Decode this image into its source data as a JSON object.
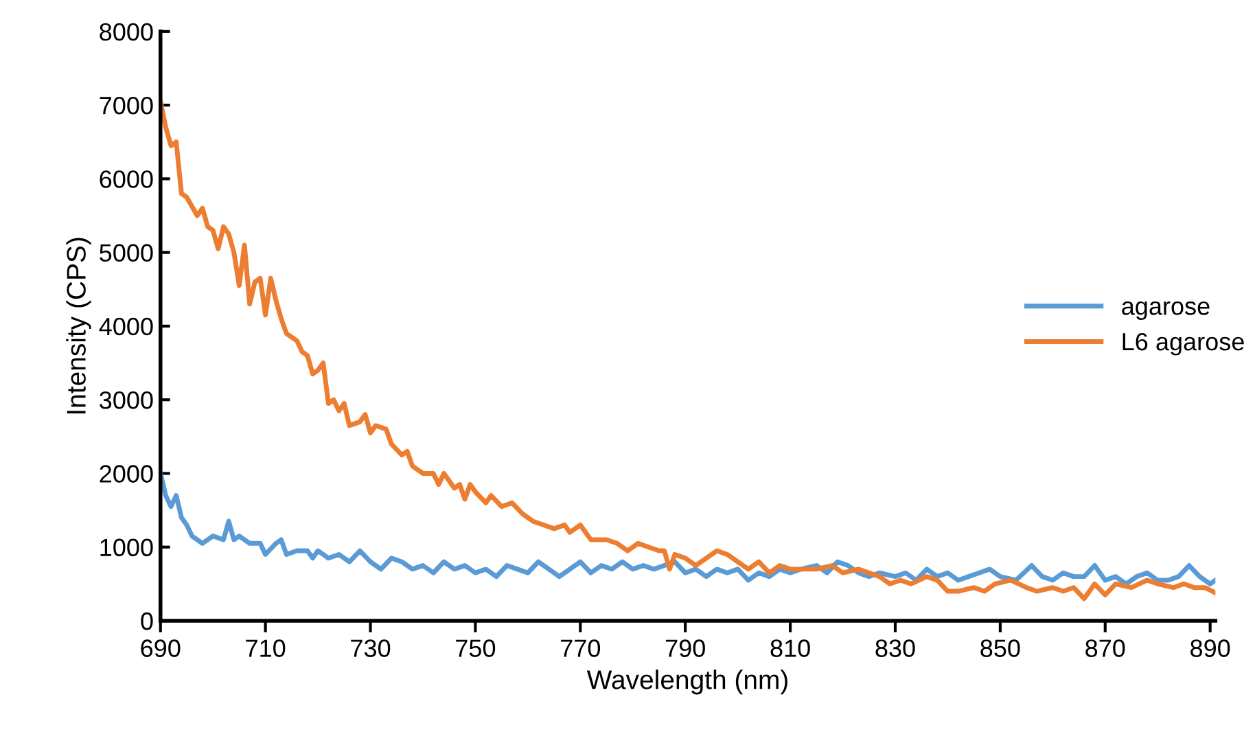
{
  "chart_data": {
    "type": "line",
    "xlabel": "Wavelength (nm)",
    "ylabel": "Intensity (CPS)",
    "xlim": [
      690,
      891
    ],
    "xticks": [
      690,
      710,
      730,
      750,
      770,
      790,
      810,
      830,
      850,
      870,
      890
    ],
    "ylim": [
      0,
      8000
    ],
    "yticks": [
      0,
      1000,
      2000,
      3000,
      4000,
      5000,
      6000,
      7000,
      8000
    ],
    "grid": false,
    "legend": "right",
    "marker": "none",
    "line_style": "solid",
    "series": [
      {
        "name": "agarose",
        "color": "#5b9bd5",
        "x": [
          690,
          691,
          692,
          693,
          694,
          695,
          696,
          698,
          700,
          702,
          703,
          704,
          705,
          707,
          709,
          710,
          712,
          713,
          714,
          716,
          718,
          719,
          720,
          721,
          722,
          724,
          726,
          728,
          730,
          732,
          734,
          736,
          738,
          740,
          742,
          744,
          746,
          748,
          750,
          752,
          754,
          756,
          758,
          760,
          762,
          764,
          766,
          768,
          770,
          772,
          774,
          776,
          778,
          780,
          782,
          784,
          786,
          788,
          790,
          792,
          794,
          796,
          798,
          800,
          802,
          804,
          806,
          808,
          810,
          812,
          815,
          817,
          819,
          821,
          823,
          825,
          827,
          830,
          832,
          834,
          836,
          838,
          840,
          842,
          844,
          846,
          848,
          850,
          853,
          856,
          858,
          860,
          862,
          864,
          866,
          868,
          870,
          872,
          874,
          876,
          878,
          880,
          882,
          884,
          886,
          888,
          890,
          891
        ],
        "values": [
          2000,
          1700,
          1550,
          1700,
          1400,
          1300,
          1150,
          1050,
          1150,
          1100,
          1350,
          1100,
          1150,
          1050,
          1050,
          900,
          1050,
          1100,
          900,
          950,
          950,
          850,
          950,
          900,
          850,
          900,
          800,
          950,
          800,
          700,
          850,
          800,
          700,
          750,
          650,
          800,
          700,
          750,
          650,
          700,
          600,
          750,
          700,
          650,
          800,
          700,
          600,
          700,
          800,
          650,
          750,
          700,
          800,
          700,
          750,
          700,
          750,
          800,
          650,
          700,
          600,
          700,
          650,
          700,
          550,
          650,
          600,
          700,
          650,
          700,
          750,
          650,
          800,
          750,
          650,
          600,
          650,
          600,
          650,
          550,
          700,
          600,
          650,
          550,
          600,
          650,
          700,
          600,
          550,
          750,
          600,
          550,
          650,
          600,
          600,
          750,
          550,
          600,
          500,
          600,
          650,
          550,
          550,
          600,
          750,
          600,
          500,
          550
        ]
      },
      {
        "name": "L6 agarose",
        "color": "#ed7d31",
        "x": [
          690,
          691,
          692,
          693,
          694,
          695,
          697,
          698,
          699,
          700,
          701,
          702,
          703,
          704,
          705,
          706,
          707,
          708,
          709,
          710,
          711,
          712,
          713,
          714,
          716,
          717,
          718,
          719,
          720,
          721,
          722,
          723,
          724,
          725,
          726,
          728,
          729,
          730,
          731,
          733,
          734,
          736,
          737,
          738,
          740,
          742,
          743,
          744,
          746,
          747,
          748,
          749,
          750,
          752,
          753,
          755,
          757,
          759,
          761,
          763,
          765,
          767,
          768,
          770,
          772,
          775,
          777,
          779,
          781,
          783,
          785,
          786,
          787,
          788,
          790,
          792,
          794,
          796,
          798,
          800,
          802,
          804,
          806,
          808,
          810,
          812,
          815,
          818,
          820,
          823,
          825,
          827,
          829,
          831,
          833,
          836,
          838,
          840,
          842,
          845,
          847,
          849,
          852,
          855,
          857,
          860,
          862,
          864,
          866,
          868,
          870,
          872,
          875,
          878,
          880,
          883,
          885,
          887,
          889,
          891
        ],
        "values": [
          7050,
          6700,
          6450,
          6500,
          5800,
          5750,
          5500,
          5600,
          5350,
          5300,
          5050,
          5350,
          5250,
          5000,
          4550,
          5100,
          4300,
          4600,
          4650,
          4150,
          4650,
          4350,
          4100,
          3900,
          3800,
          3650,
          3600,
          3350,
          3400,
          3500,
          2950,
          3000,
          2850,
          2950,
          2650,
          2700,
          2800,
          2550,
          2650,
          2600,
          2400,
          2250,
          2300,
          2100,
          2000,
          2000,
          1850,
          2000,
          1800,
          1850,
          1650,
          1850,
          1750,
          1600,
          1700,
          1550,
          1600,
          1450,
          1350,
          1300,
          1250,
          1300,
          1200,
          1300,
          1100,
          1100,
          1050,
          950,
          1050,
          1000,
          950,
          950,
          700,
          900,
          850,
          750,
          850,
          950,
          900,
          800,
          700,
          800,
          650,
          750,
          700,
          700,
          700,
          750,
          650,
          700,
          650,
          600,
          500,
          550,
          500,
          600,
          550,
          400,
          400,
          450,
          400,
          500,
          550,
          450,
          400,
          450,
          400,
          450,
          300,
          500,
          350,
          500,
          450,
          550,
          500,
          450,
          500,
          450,
          450,
          380
        ]
      }
    ]
  }
}
